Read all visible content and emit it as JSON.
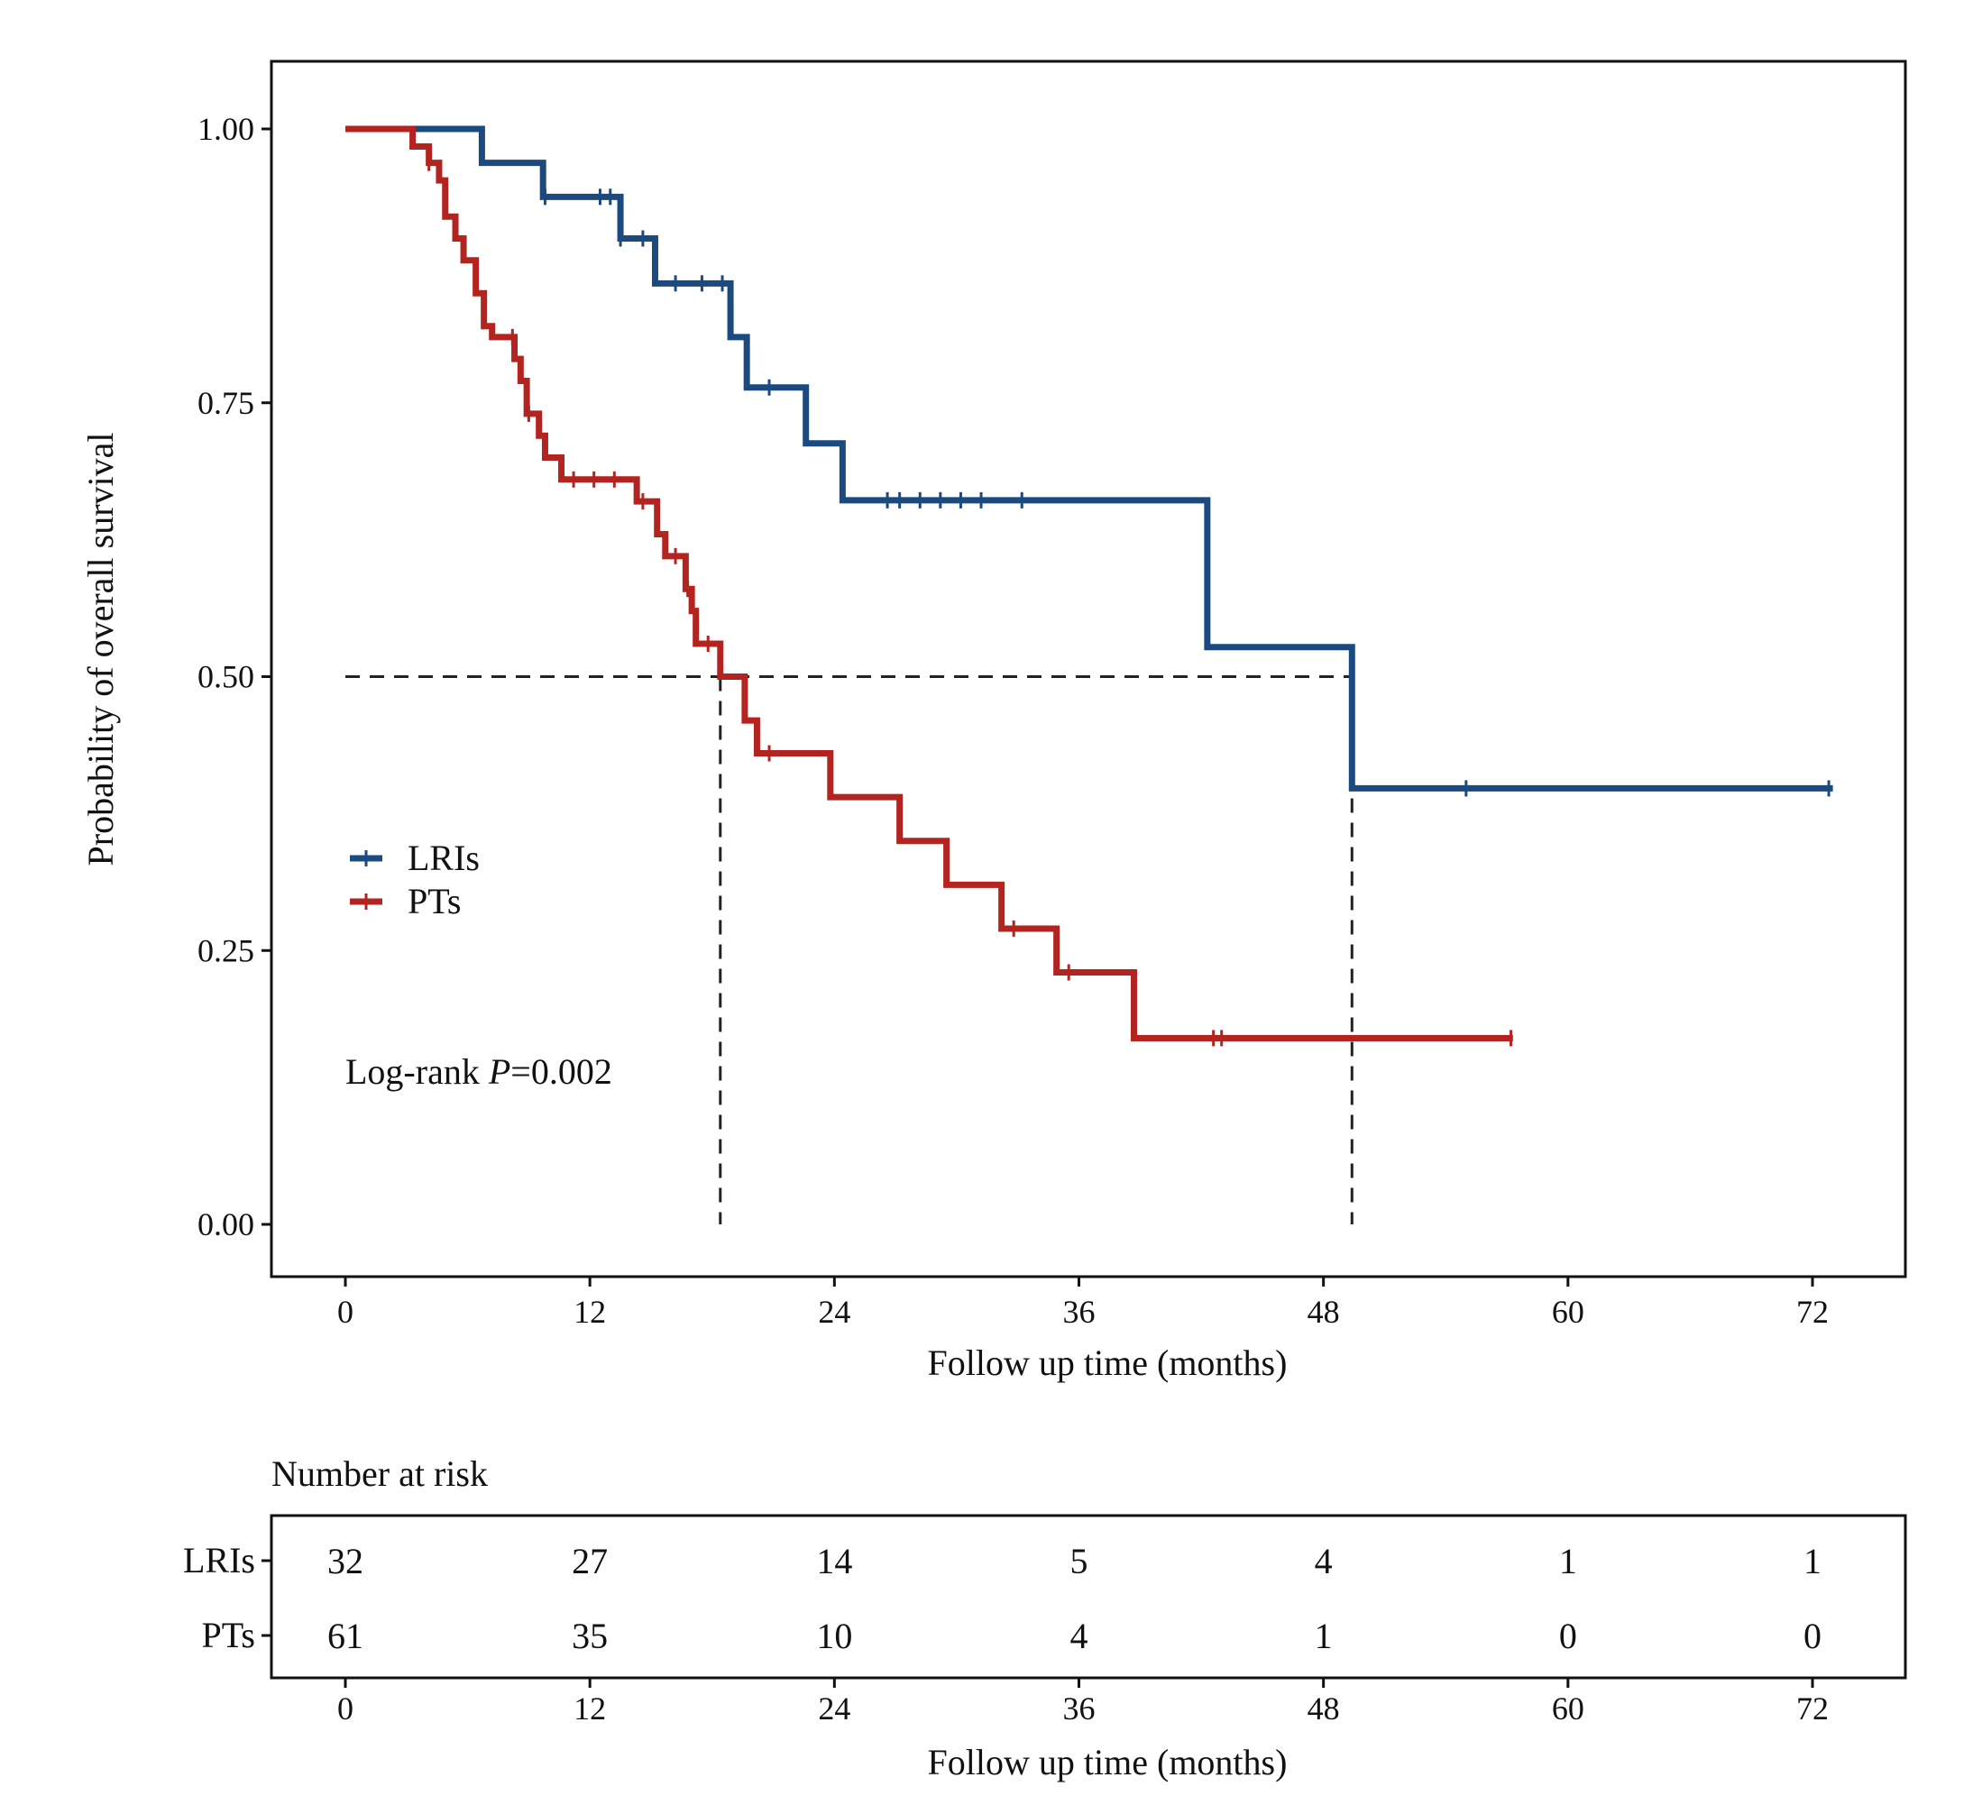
{
  "chart_data": {
    "type": "line",
    "subtype": "kaplan-meier",
    "xlabel": "Follow up time (months)",
    "ylabel": "Probability of overall survival",
    "xlim": [
      0,
      72
    ],
    "ylim": [
      0,
      1
    ],
    "xticks": [
      "0",
      "12",
      "24",
      "36",
      "48",
      "60",
      "72"
    ],
    "yticks": [
      "0.00",
      "0.25",
      "0.50",
      "0.75",
      "1.00"
    ],
    "annotation": {
      "prefix": "Log-rank ",
      "p_label": "P",
      "value": "=0.002"
    },
    "legend_position": "left-middle",
    "median_line": {
      "y": 0.5,
      "x": [
        18.4,
        49.4
      ]
    },
    "series": [
      {
        "name": "LRIs",
        "color": "#1b4a80",
        "end": 73,
        "steps": [
          [
            0,
            1.0
          ],
          [
            6.7,
            0.969
          ],
          [
            9.7,
            0.938
          ],
          [
            13.5,
            0.9
          ],
          [
            15.2,
            0.859
          ],
          [
            18.9,
            0.81
          ],
          [
            19.7,
            0.764
          ],
          [
            22.6,
            0.713
          ],
          [
            24.4,
            0.661
          ],
          [
            42.3,
            0.527
          ],
          [
            49.4,
            0.398
          ]
        ],
        "censor": [
          9.8,
          12.5,
          13.0,
          13.5,
          14.6,
          16.2,
          17.5,
          18.5,
          20.8,
          26.6,
          27.2,
          28.2,
          29.2,
          30.2,
          31.2,
          33.2,
          55.0,
          72.8
        ]
      },
      {
        "name": "PTs",
        "color": "#b3231f",
        "end": 57.3,
        "steps": [
          [
            0,
            1.0
          ],
          [
            3.3,
            0.984
          ],
          [
            4.1,
            0.969
          ],
          [
            4.6,
            0.953
          ],
          [
            4.9,
            0.92
          ],
          [
            5.4,
            0.9
          ],
          [
            5.8,
            0.88
          ],
          [
            6.4,
            0.85
          ],
          [
            6.8,
            0.82
          ],
          [
            7.2,
            0.81
          ],
          [
            8.3,
            0.79
          ],
          [
            8.6,
            0.77
          ],
          [
            8.9,
            0.74
          ],
          [
            9.5,
            0.72
          ],
          [
            9.8,
            0.7
          ],
          [
            10.6,
            0.68
          ],
          [
            14.3,
            0.66
          ],
          [
            15.3,
            0.63
          ],
          [
            15.7,
            0.61
          ],
          [
            16.7,
            0.58
          ],
          [
            17.0,
            0.56
          ],
          [
            17.2,
            0.53
          ],
          [
            18.4,
            0.5
          ],
          [
            19.6,
            0.46
          ],
          [
            20.2,
            0.43
          ],
          [
            23.8,
            0.39
          ],
          [
            27.2,
            0.35
          ],
          [
            29.5,
            0.31
          ],
          [
            32.2,
            0.27
          ],
          [
            34.9,
            0.23
          ],
          [
            38.7,
            0.17
          ]
        ],
        "censor": [
          4.1,
          8.2,
          9.0,
          11.2,
          12.2,
          13.2,
          14.6,
          16.2,
          16.8,
          17.8,
          20.8,
          32.8,
          35.5,
          42.6,
          43.0,
          57.2
        ]
      }
    ],
    "risk_table": {
      "title": "Number at risk",
      "xlabel": "Follow up time (months)",
      "times": [
        0,
        12,
        24,
        36,
        48,
        60,
        72
      ],
      "time_labels": [
        "0",
        "12",
        "24",
        "36",
        "48",
        "60",
        "72"
      ],
      "rows": [
        {
          "name": "LRIs",
          "values": [
            "32",
            "27",
            "14",
            "5",
            "4",
            "1",
            "1"
          ]
        },
        {
          "name": "PTs",
          "values": [
            "61",
            "35",
            "10",
            "4",
            "1",
            "0",
            "0"
          ]
        }
      ]
    }
  }
}
